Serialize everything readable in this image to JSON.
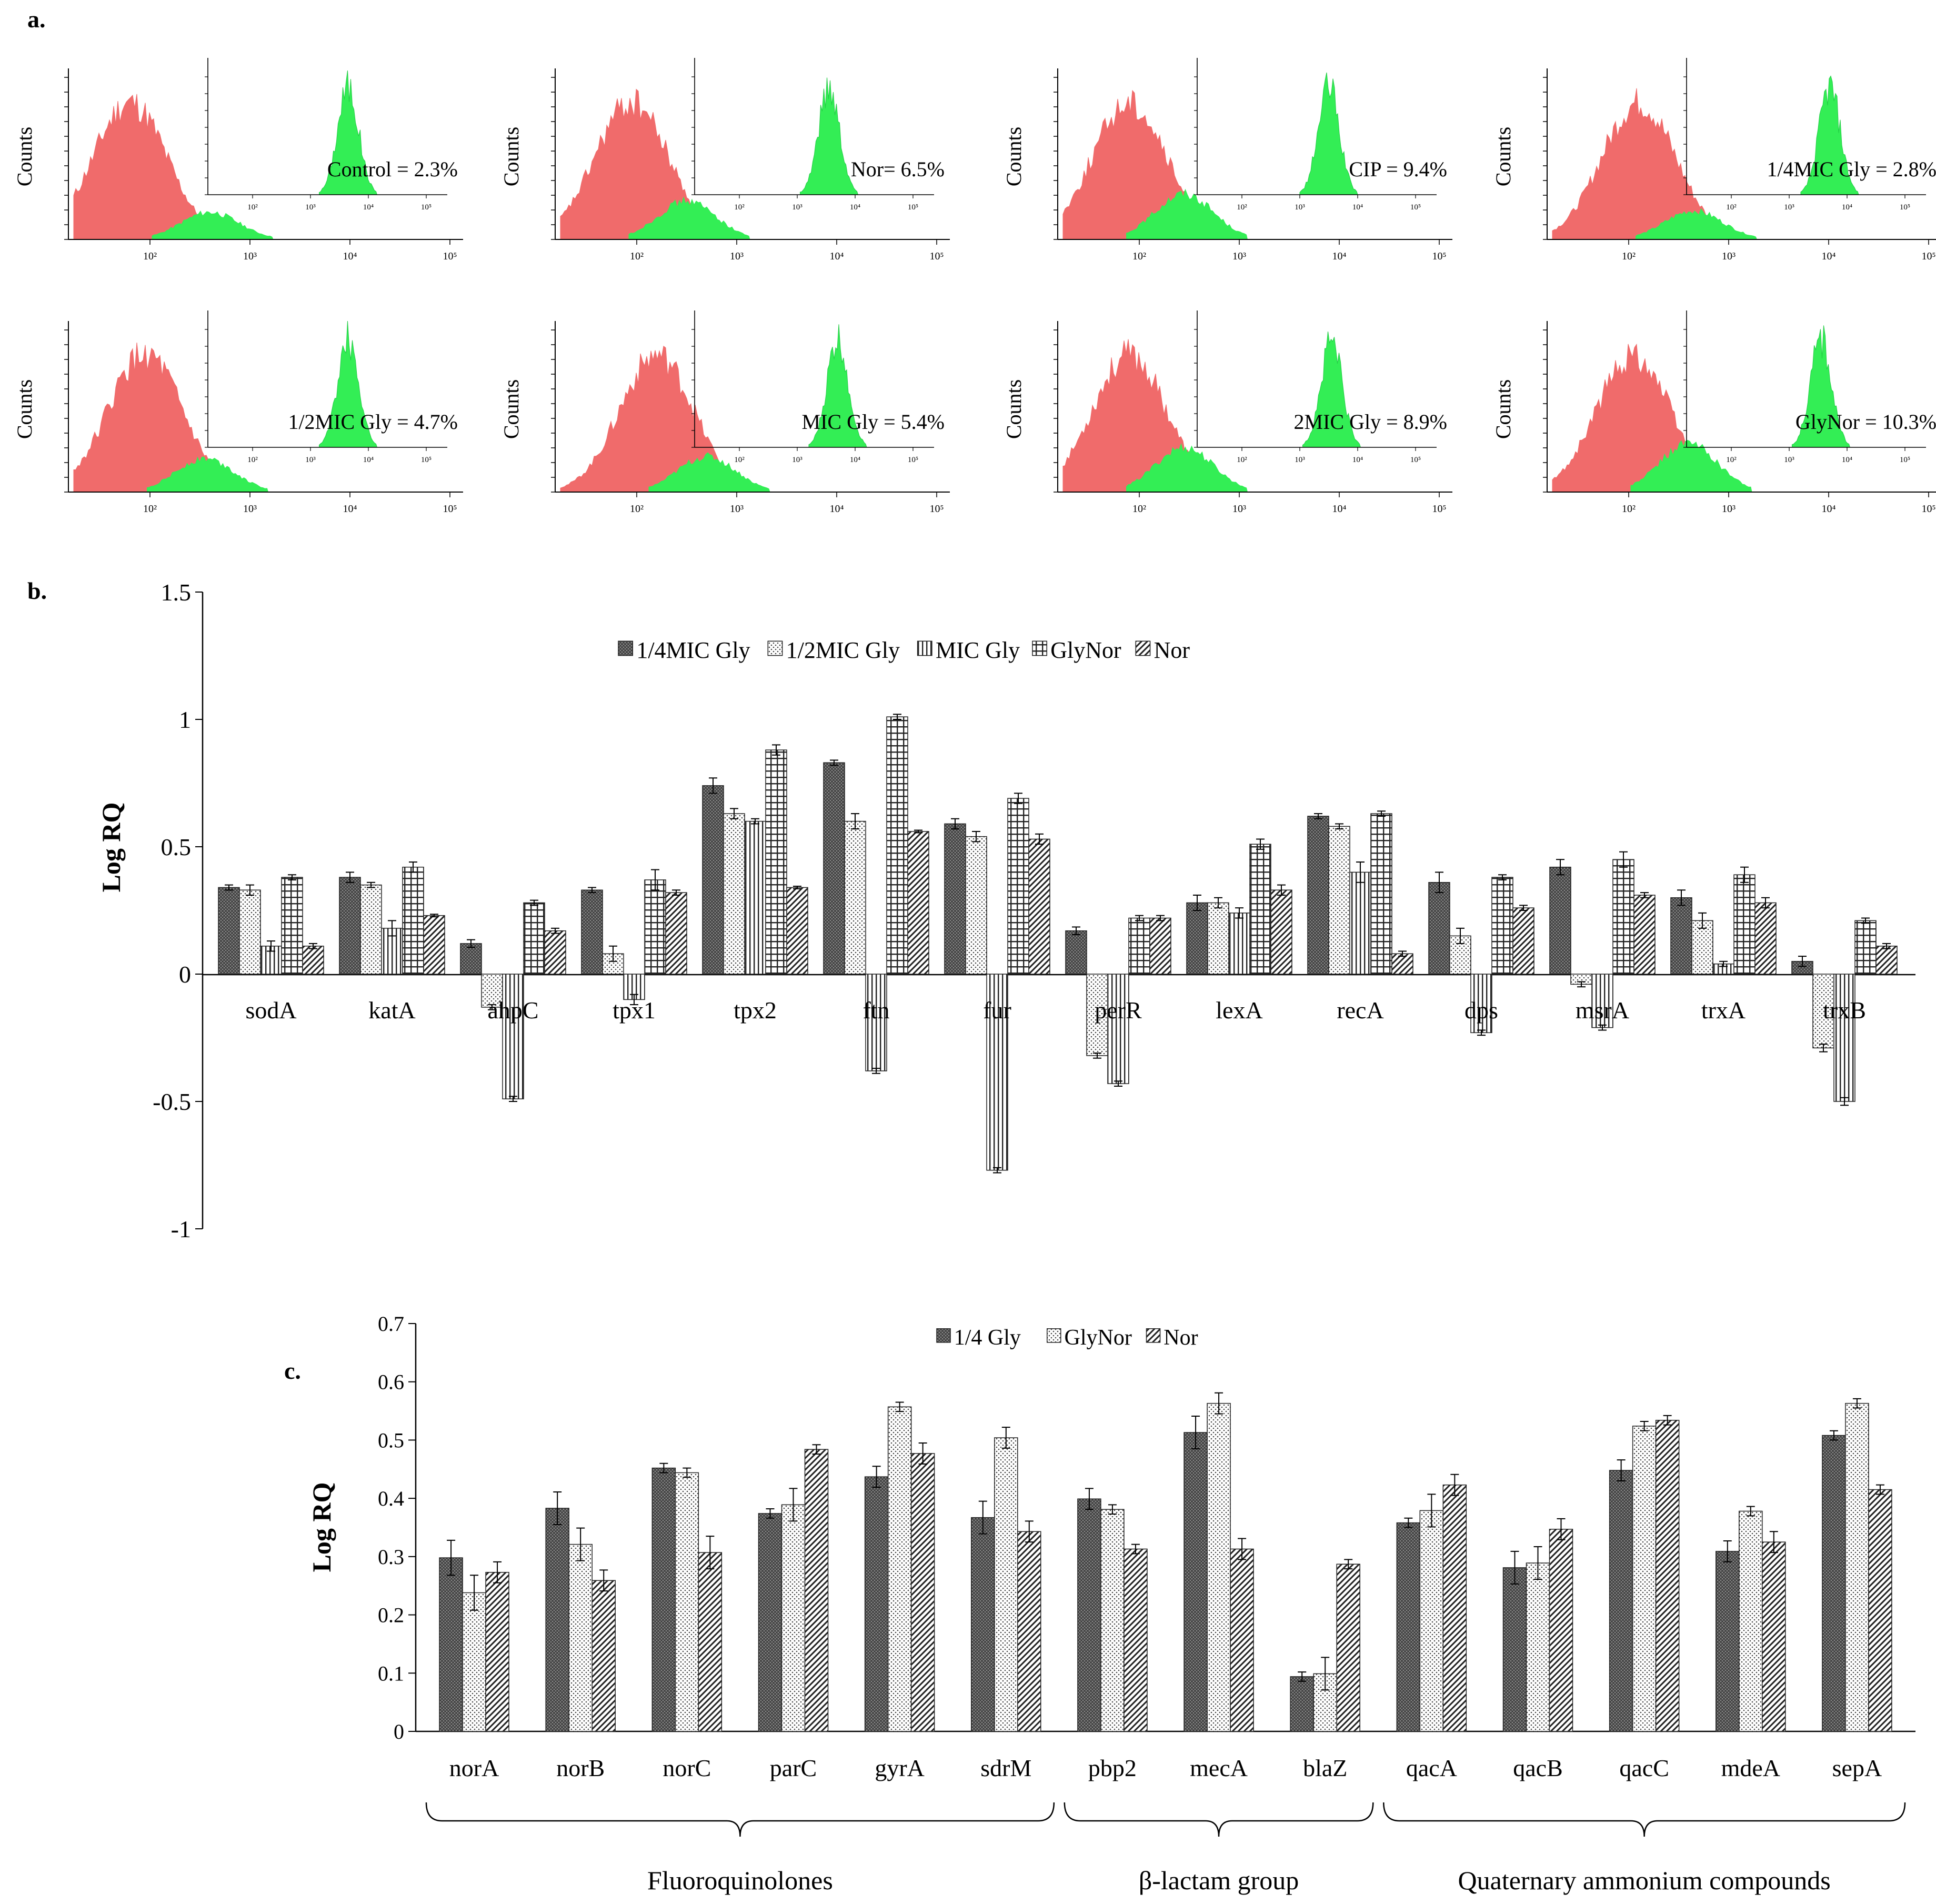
{
  "panel_labels": {
    "a": "a.",
    "b": "b.",
    "c": "c."
  },
  "flow_panels": {
    "y_axis_label": "Counts",
    "x_ticks": [
      "10²",
      "10³",
      "10⁴",
      "10⁵"
    ],
    "panels": [
      {
        "label": "Control = 2.3%",
        "percent": 2.3,
        "red_peak_log": 1.8,
        "green_peak_log": 2.6,
        "inset_peak_log": 3.65
      },
      {
        "label": "Nor= 6.5%",
        "percent": 6.5,
        "red_peak_log": 1.95,
        "green_peak_log": 2.5,
        "inset_peak_log": 3.55
      },
      {
        "label": "CIP = 9.4%",
        "percent": 9.4,
        "red_peak_log": 1.9,
        "green_peak_log": 2.45,
        "inset_peak_log": 3.5
      },
      {
        "label": "1/4MIC Gly = 2.8%",
        "percent": 2.8,
        "red_peak_log": 2.1,
        "green_peak_log": 2.65,
        "inset_peak_log": 3.7
      },
      {
        "label": "1/2MIC Gly = 4.7%",
        "percent": 4.7,
        "red_peak_log": 1.95,
        "green_peak_log": 2.55,
        "inset_peak_log": 3.65
      },
      {
        "label": "MIC Gly = 5.4%",
        "percent": 5.4,
        "red_peak_log": 2.2,
        "green_peak_log": 2.7,
        "inset_peak_log": 3.7
      },
      {
        "label": "2MIC Gly = 8.9%",
        "percent": 8.9,
        "red_peak_log": 1.9,
        "green_peak_log": 2.45,
        "inset_peak_log": 3.55
      },
      {
        "label": "GlyNor = 10.3%",
        "percent": 10.3,
        "red_peak_log": 2.05,
        "green_peak_log": 2.6,
        "inset_peak_log": 3.55
      }
    ]
  },
  "chart_data": [
    {
      "type": "bar",
      "panel": "b",
      "ylabel": "Log RQ",
      "ylim": [
        -1,
        1.5
      ],
      "yticks": [
        "1.5",
        "1",
        "0.5",
        "0",
        "-0.5",
        "-1"
      ],
      "categories": [
        "sodA",
        "katA",
        "ahpC",
        "tpx1",
        "tpx2",
        "ftn",
        "fur",
        "perR",
        "lexA",
        "recA",
        "dps",
        "msrA",
        "trxA",
        "trxB"
      ],
      "series": [
        {
          "name": "1/4MIC Gly",
          "values": [
            0.34,
            0.38,
            0.12,
            0.33,
            0.74,
            0.83,
            0.59,
            0.17,
            0.28,
            0.62,
            0.36,
            0.42,
            0.3,
            0.05
          ],
          "errors": [
            0.01,
            0.02,
            0.015,
            0.01,
            0.03,
            0.01,
            0.02,
            0.015,
            0.03,
            0.01,
            0.04,
            0.03,
            0.03,
            0.02
          ]
        },
        {
          "name": "1/2MIC Gly",
          "values": [
            0.33,
            0.35,
            -0.13,
            0.08,
            0.63,
            0.6,
            0.54,
            -0.32,
            0.28,
            0.58,
            0.15,
            -0.04,
            0.21,
            -0.29
          ],
          "errors": [
            0.02,
            0.01,
            0.01,
            0.03,
            0.02,
            0.03,
            0.02,
            0.01,
            0.02,
            0.01,
            0.03,
            0.01,
            0.03,
            0.015
          ]
        },
        {
          "name": "MIC Gly",
          "values": [
            0.11,
            0.18,
            -0.49,
            -0.1,
            0.6,
            -0.38,
            -0.77,
            -0.43,
            0.24,
            0.4,
            -0.23,
            -0.21,
            0.04,
            -0.5
          ],
          "errors": [
            0.02,
            0.03,
            0.01,
            0.02,
            0.01,
            0.01,
            0.01,
            0.01,
            0.02,
            0.04,
            0.01,
            0.01,
            0.01,
            0.015
          ]
        },
        {
          "name": "GlyNor",
          "values": [
            0.38,
            0.42,
            0.28,
            0.37,
            0.88,
            1.01,
            0.69,
            0.22,
            0.51,
            0.63,
            0.38,
            0.45,
            0.39,
            0.21
          ],
          "errors": [
            0.01,
            0.02,
            0.01,
            0.04,
            0.02,
            0.01,
            0.02,
            0.01,
            0.02,
            0.01,
            0.01,
            0.03,
            0.03,
            0.01
          ]
        },
        {
          "name": "Nor",
          "values": [
            0.11,
            0.23,
            0.17,
            0.32,
            0.34,
            0.56,
            0.53,
            0.22,
            0.33,
            0.08,
            0.26,
            0.31,
            0.28,
            0.11
          ],
          "errors": [
            0.01,
            0.005,
            0.01,
            0.01,
            0.005,
            0.005,
            0.02,
            0.01,
            0.02,
            0.01,
            0.01,
            0.01,
            0.02,
            0.01
          ]
        }
      ]
    },
    {
      "type": "bar",
      "panel": "c",
      "ylabel": "Log RQ",
      "ylim": [
        0,
        0.7
      ],
      "yticks": [
        "0",
        "0.1",
        "0.2",
        "0.3",
        "0.4",
        "0.5",
        "0.6",
        "0.7"
      ],
      "categories": [
        "norA",
        "norB",
        "norC",
        "parC",
        "gyrA",
        "sdrM",
        "pbp2",
        "mecA",
        "blaZ",
        "qacA",
        "qacB",
        "qacC",
        "mdeA",
        "sepA"
      ],
      "series": [
        {
          "name": "1/4 Gly",
          "values": [
            0.298,
            0.383,
            0.452,
            0.374,
            0.437,
            0.367,
            0.399,
            0.513,
            0.094,
            0.358,
            0.281,
            0.448,
            0.309,
            0.508
          ],
          "errors": [
            0.03,
            0.028,
            0.008,
            0.008,
            0.018,
            0.028,
            0.018,
            0.028,
            0.008,
            0.008,
            0.028,
            0.018,
            0.018,
            0.008
          ]
        },
        {
          "name": "GlyNor",
          "values": [
            0.238,
            0.321,
            0.444,
            0.389,
            0.557,
            0.504,
            0.381,
            0.563,
            0.099,
            0.379,
            0.289,
            0.524,
            0.378,
            0.563
          ],
          "errors": [
            0.03,
            0.028,
            0.008,
            0.028,
            0.008,
            0.018,
            0.008,
            0.018,
            0.028,
            0.028,
            0.028,
            0.008,
            0.008,
            0.008
          ]
        },
        {
          "name": "Nor",
          "values": [
            0.273,
            0.259,
            0.307,
            0.484,
            0.477,
            0.343,
            0.313,
            0.313,
            0.287,
            0.423,
            0.347,
            0.534,
            0.325,
            0.415
          ],
          "errors": [
            0.018,
            0.018,
            0.028,
            0.008,
            0.018,
            0.018,
            0.008,
            0.018,
            0.008,
            0.018,
            0.018,
            0.008,
            0.018,
            0.008
          ]
        }
      ],
      "groups": [
        {
          "label": "Fluoroquinolones",
          "members": [
            "norA",
            "norB",
            "norC",
            "parC",
            "gyrA",
            "sdrM"
          ]
        },
        {
          "label": "β-lactam group",
          "members": [
            "pbp2",
            "mecA",
            "blaZ"
          ]
        },
        {
          "label": "Quaternary ammonium compounds",
          "members": [
            "qacA",
            "qacB",
            "qacC",
            "mdeA",
            "sepA"
          ]
        }
      ]
    }
  ]
}
